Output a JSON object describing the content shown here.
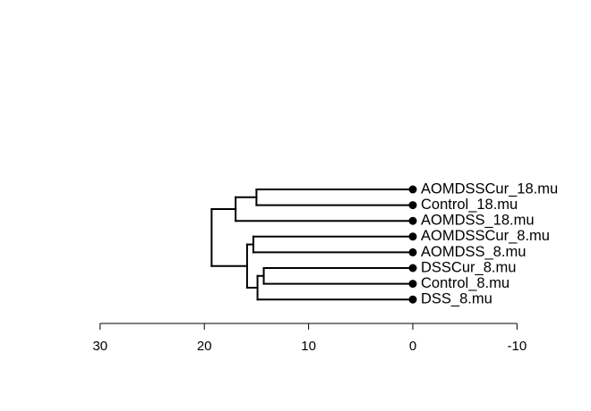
{
  "chart_data": {
    "type": "dendrogram",
    "orientation": "horizontal",
    "title": "",
    "xlabel": "",
    "ylabel": "",
    "x_axis": {
      "reversed": true,
      "ticks": [
        30,
        20,
        10,
        0,
        -10
      ],
      "tick_labels": [
        "30",
        "20",
        "10",
        "0",
        "-10"
      ]
    },
    "leaves": [
      {
        "id": "L1",
        "label": "AOMDSSCur_18.mu"
      },
      {
        "id": "L2",
        "label": "Control_18.mu"
      },
      {
        "id": "L3",
        "label": "AOMDSS_18.mu"
      },
      {
        "id": "L4",
        "label": "AOMDSSCur_8.mu"
      },
      {
        "id": "L5",
        "label": "AOMDSS_8.mu"
      },
      {
        "id": "L6",
        "label": "DSSCur_8.mu"
      },
      {
        "id": "L7",
        "label": "Control_8.mu"
      },
      {
        "id": "L8",
        "label": "DSS_8.mu"
      }
    ],
    "merges": [
      {
        "id": "N1",
        "children": [
          "L1",
          "L2"
        ],
        "height": 15.0
      },
      {
        "id": "N2",
        "children": [
          "N1",
          "L3"
        ],
        "height": 17.0
      },
      {
        "id": "N3",
        "children": [
          "L4",
          "L5"
        ],
        "height": 15.3
      },
      {
        "id": "N4",
        "children": [
          "L6",
          "L7"
        ],
        "height": 14.3
      },
      {
        "id": "N5",
        "children": [
          "N4",
          "L8"
        ],
        "height": 14.9
      },
      {
        "id": "N6",
        "children": [
          "N3",
          "N5"
        ],
        "height": 15.9
      },
      {
        "id": "N7",
        "children": [
          "N2",
          "N6"
        ],
        "height": 19.3
      }
    ]
  }
}
